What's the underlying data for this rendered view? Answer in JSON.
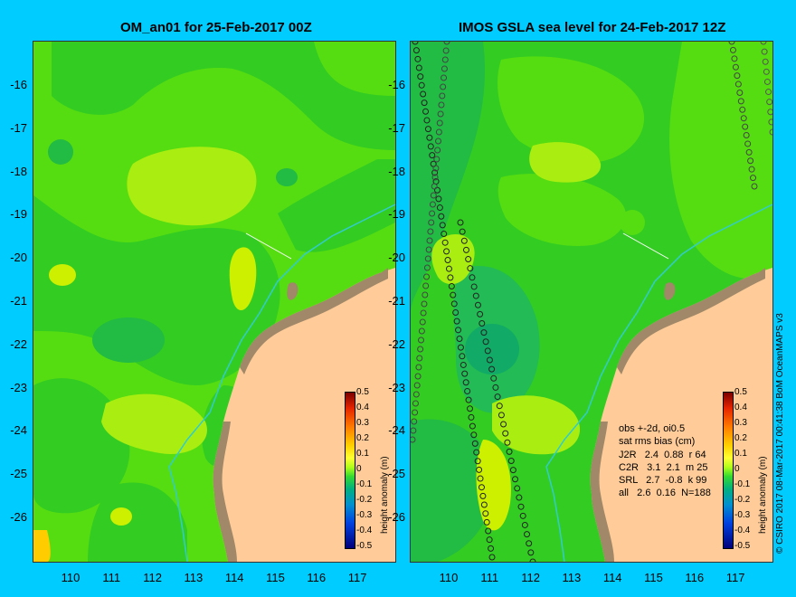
{
  "panels": [
    {
      "title": "OM_an01 for 25-Feb-2017 00Z"
    },
    {
      "title": "IMOS GSLA sea level  for 24-Feb-2017 12Z"
    }
  ],
  "y_tick_labels": [
    "-16",
    "-17",
    "-18",
    "-19",
    "-20",
    "-21",
    "-22",
    "-23",
    "-24",
    "-25",
    "-26"
  ],
  "x_tick_labels": [
    "110",
    "111",
    "112",
    "113",
    "114",
    "115",
    "116",
    "117"
  ],
  "colorbar": {
    "title": "height anomaly (m)",
    "ticks": [
      "0.5",
      "0.4",
      "0.3",
      "0.2",
      "0.1",
      "0",
      "-0.1",
      "-0.2",
      "-0.3",
      "-0.4",
      "-0.5"
    ]
  },
  "stats": {
    "line1": "obs +-2d, oi0.5",
    "line2": "sat rms bias (cm)",
    "rows": [
      "J2R   2.4  0.88  r 64",
      "C2R   3.1  2.1  m 25",
      "SRL   2.7  -0.8  k 99",
      "all   2.6  0.16  N=188"
    ]
  },
  "credit": "© CSIRO 2017   08-Mar-2017 00:41:38 BoM OceanMAPS v3",
  "colors": {
    "background": "#00ccff",
    "land": "#ffcc99",
    "ocean_base": "#55dd11",
    "coast": "#a08868",
    "shelf_line": "#33cccc"
  }
}
